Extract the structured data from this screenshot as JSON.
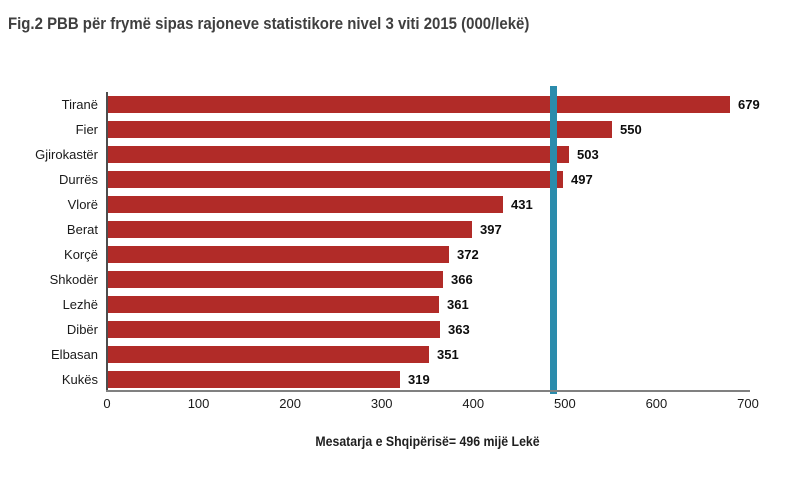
{
  "page": {
    "title": "Fig.2 PBB për frymë sipas rajoneve statistikore nivel 3 viti 2015 (000/lekë)"
  },
  "chart_data": {
    "type": "bar",
    "orientation": "horizontal",
    "title": "Fig.2 PBB për frymë sipas rajoneve statistikore nivel 3 viti 2015 (000/lekë)",
    "categories": [
      "Tiranë",
      "Fier",
      "Gjirokastër",
      "Durrës",
      "Vlorë",
      "Berat",
      "Korçë",
      "Shkodër",
      "Lezhë",
      "Dibër",
      "Elbasan",
      "Kukës"
    ],
    "values": [
      679,
      550,
      503,
      497,
      431,
      397,
      372,
      366,
      361,
      363,
      351,
      319
    ],
    "xlabel": "",
    "ylabel": "",
    "xlim": [
      0,
      700
    ],
    "x_ticks": [
      0,
      100,
      200,
      300,
      400,
      500,
      600,
      700
    ],
    "grid": false,
    "value_labels": "outside-end",
    "bar_color": "#b12b28",
    "average_line": {
      "value": 496,
      "drawn_at": 488,
      "color": "#2b8cac"
    },
    "caption": "Mesatarja e Shqipërisë= 496 mijë Lekë"
  }
}
